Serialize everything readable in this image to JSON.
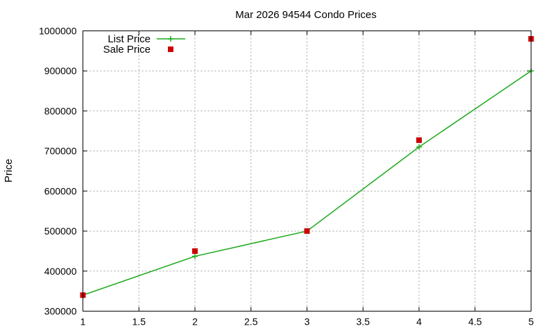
{
  "chart_data": {
    "type": "line",
    "title": "Mar 2026 94544 Condo Prices",
    "xlabel": "",
    "ylabel": "Price",
    "xlim": [
      1,
      5
    ],
    "ylim": [
      300000,
      1000000
    ],
    "x_ticks": [
      "1",
      "1.5",
      "2",
      "2.5",
      "3",
      "3.5",
      "4",
      "4.5",
      "5"
    ],
    "x_tick_values": [
      1,
      1.5,
      2,
      2.5,
      3,
      3.5,
      4,
      4.5,
      5
    ],
    "y_ticks": [
      "300000",
      "400000",
      "500000",
      "600000",
      "700000",
      "800000",
      "900000",
      "1000000"
    ],
    "y_tick_values": [
      300000,
      400000,
      500000,
      600000,
      700000,
      800000,
      900000,
      1000000
    ],
    "grid": true,
    "legend_position": "top-left",
    "series": [
      {
        "name": "List Price",
        "style": "line-with-plus-markers",
        "color": "#1aa81a",
        "x": [
          1,
          2,
          3,
          4,
          5
        ],
        "y": [
          340000,
          437000,
          500000,
          710000,
          900000
        ]
      },
      {
        "name": "Sale Price",
        "style": "square-markers",
        "color": "#cc0000",
        "x": [
          1,
          2,
          3,
          4,
          5
        ],
        "y": [
          340000,
          450000,
          500000,
          727000,
          980000
        ]
      }
    ]
  }
}
